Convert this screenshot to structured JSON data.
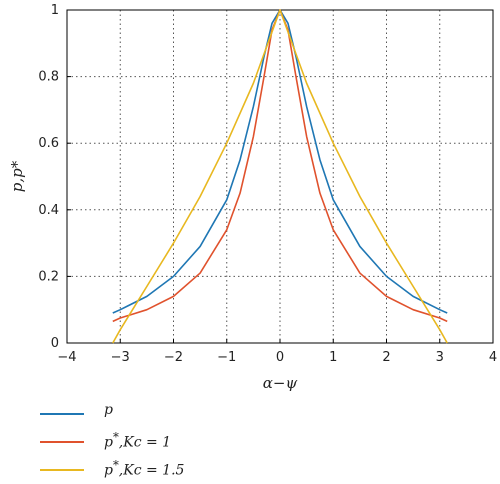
{
  "chart_data": {
    "type": "line",
    "title": "",
    "xlabel": "α−ψ",
    "ylabel": "p,p*",
    "xlim": [
      -4,
      4
    ],
    "ylim": [
      0,
      1
    ],
    "xticks": [
      "−4",
      "−3",
      "−2",
      "−1",
      "0",
      "1",
      "2",
      "3",
      "4"
    ],
    "yticks": [
      "0",
      "0.2",
      "0.4",
      "0.6",
      "0.8",
      "1"
    ],
    "grid": true,
    "legend_position": "bottom-left",
    "series": [
      {
        "name": "p",
        "color": "#1f77b4",
        "x": [
          -3.14,
          -3.0,
          -2.5,
          -2.0,
          -1.5,
          -1.0,
          -0.75,
          -0.5,
          -0.3,
          -0.15,
          0,
          0.15,
          0.3,
          0.5,
          0.75,
          1.0,
          1.5,
          2.0,
          2.5,
          3.0,
          3.14
        ],
        "y": [
          0.09,
          0.1,
          0.14,
          0.2,
          0.29,
          0.43,
          0.55,
          0.71,
          0.86,
          0.96,
          1.0,
          0.96,
          0.86,
          0.71,
          0.55,
          0.43,
          0.29,
          0.2,
          0.14,
          0.1,
          0.09
        ]
      },
      {
        "name": "p*,Kc = 1",
        "color": "#e0522d",
        "x": [
          -3.14,
          -3.0,
          -2.5,
          -2.0,
          -1.5,
          -1.0,
          -0.75,
          -0.5,
          -0.3,
          -0.15,
          0,
          0.15,
          0.3,
          0.5,
          0.75,
          1.0,
          1.5,
          2.0,
          2.5,
          3.0,
          3.14
        ],
        "y": [
          0.065,
          0.075,
          0.1,
          0.14,
          0.21,
          0.34,
          0.45,
          0.62,
          0.8,
          0.94,
          1.0,
          0.94,
          0.8,
          0.62,
          0.45,
          0.34,
          0.21,
          0.14,
          0.1,
          0.075,
          0.065
        ]
      },
      {
        "name": "p*,Kc = 1.5",
        "color": "#e8b820",
        "x": [
          -3.14,
          -3.0,
          -2.5,
          -2.0,
          -1.5,
          -1.0,
          -0.5,
          -0.25,
          0,
          0.25,
          0.5,
          1.0,
          1.5,
          2.0,
          2.5,
          3.0,
          3.14
        ],
        "y": [
          0.0,
          0.04,
          0.17,
          0.3,
          0.44,
          0.6,
          0.78,
          0.89,
          1.0,
          0.89,
          0.78,
          0.6,
          0.44,
          0.3,
          0.17,
          0.04,
          0.0
        ]
      }
    ]
  },
  "legend": [
    {
      "label": "p",
      "sup": "",
      "rest": "",
      "color": "#1f77b4"
    },
    {
      "label": "p",
      "sup": "*",
      "rest": ",Kc = 1",
      "color": "#e0522d"
    },
    {
      "label": "p",
      "sup": "*",
      "rest": ",Kc = 1.5",
      "color": "#e8b820"
    }
  ]
}
